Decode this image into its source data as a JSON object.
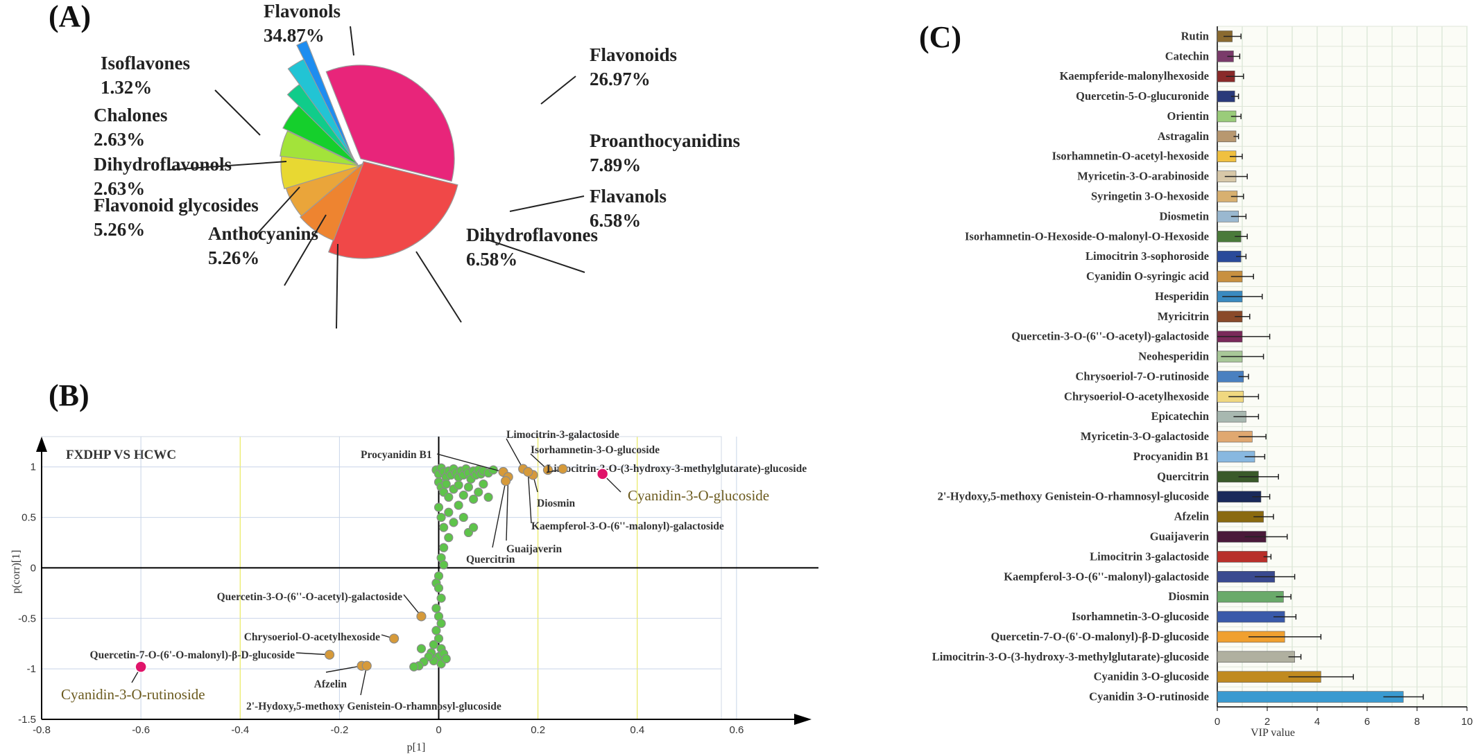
{
  "panels": {
    "a": "(A)",
    "b": "(B)",
    "c": "(C)"
  },
  "colors": {
    "flavonols": "#e8257a",
    "flavonoids": "#f04848",
    "proanthocyanidins": "#ee8430",
    "flavanols": "#eaa53a",
    "dihydroflavones": "#e8d832",
    "anthocyanins": "#a3e33a",
    "flavonoid_glycosides": "#15cf2c",
    "dihydroflavonols": "#10cc8a",
    "chalones": "#22c4d4",
    "isoflavones": "#1e8df0",
    "scatter_point": "#5ec44a",
    "scatter_highlight": "#e0146a",
    "scatter_outline": "#d69a3a"
  },
  "chart_data": [
    {
      "type": "pie",
      "slices": [
        {
          "name": "Flavonols",
          "label_pct": "34.87%",
          "value": 34.87,
          "color": "#e8257a"
        },
        {
          "name": "Flavonoids",
          "label_pct": "26.97%",
          "value": 26.97,
          "color": "#f04848"
        },
        {
          "name": "Proanthocyanidins",
          "label_pct": "7.89%",
          "value": 7.89,
          "color": "#ee8430"
        },
        {
          "name": "Flavanols",
          "label_pct": "6.58%",
          "value": 6.58,
          "color": "#eaa53a"
        },
        {
          "name": "Dihydroflavones",
          "label_pct": "6.58%",
          "value": 6.58,
          "color": "#e8d832"
        },
        {
          "name": "Anthocyanins",
          "label_pct": "5.26%",
          "value": 5.26,
          "color": "#a3e33a"
        },
        {
          "name": "Flavonoid glycosides",
          "label_pct": "5.26%",
          "value": 5.26,
          "color": "#15cf2c"
        },
        {
          "name": "Dihydroflavonols",
          "label_pct": "2.63%",
          "value": 2.63,
          "color": "#10cc8a"
        },
        {
          "name": "Chalones",
          "label_pct": "2.63%",
          "value": 2.63,
          "color": "#22c4d4"
        },
        {
          "name": "Isoflavones",
          "label_pct": "1.32%",
          "value": 1.32,
          "color": "#1e8df0"
        }
      ]
    },
    {
      "type": "scatter",
      "title": "FXDHP VS HCWC",
      "xlabel": "p[1]",
      "ylabel": "p(corr)[1]",
      "xlim": [
        -0.8,
        0.8
      ],
      "ylim": [
        -1.5,
        1.3
      ],
      "xticks": [
        "-0.8",
        "-0.6",
        "-0.4",
        "-0.2",
        "0",
        "0.2",
        "0.4",
        "0.6"
      ],
      "yticks": [
        "-1.5",
        "-1",
        "-0.5",
        "0",
        "0.5",
        "1"
      ],
      "cluster_points": [
        [
          -0.005,
          0.97
        ],
        [
          0.0,
          0.93
        ],
        [
          0.005,
          0.99
        ],
        [
          0.01,
          0.95
        ],
        [
          0.015,
          0.9
        ],
        [
          0.02,
          0.96
        ],
        [
          0.025,
          0.92
        ],
        [
          0.03,
          0.98
        ],
        [
          0.035,
          0.94
        ],
        [
          0.04,
          0.9
        ],
        [
          0.045,
          0.96
        ],
        [
          0.05,
          0.92
        ],
        [
          0.055,
          0.98
        ],
        [
          0.06,
          0.94
        ],
        [
          0.065,
          0.88
        ],
        [
          0.07,
          0.96
        ],
        [
          0.075,
          0.92
        ],
        [
          0.08,
          0.97
        ],
        [
          0.085,
          0.93
        ],
        [
          0.09,
          0.96
        ],
        [
          0.1,
          0.94
        ],
        [
          0.11,
          0.97
        ],
        [
          0.0,
          0.85
        ],
        [
          0.005,
          0.8
        ],
        [
          0.01,
          0.75
        ],
        [
          0.015,
          0.83
        ],
        [
          0.02,
          0.7
        ],
        [
          0.03,
          0.78
        ],
        [
          0.04,
          0.82
        ],
        [
          0.05,
          0.72
        ],
        [
          0.06,
          0.8
        ],
        [
          0.07,
          0.68
        ],
        [
          0.08,
          0.75
        ],
        [
          0.09,
          0.83
        ],
        [
          0.1,
          0.7
        ],
        [
          0.0,
          0.6
        ],
        [
          0.005,
          0.5
        ],
        [
          0.01,
          0.4
        ],
        [
          0.02,
          0.55
        ],
        [
          0.03,
          0.45
        ],
        [
          0.04,
          0.62
        ],
        [
          0.05,
          0.5
        ],
        [
          0.06,
          0.35
        ],
        [
          0.07,
          0.4
        ],
        [
          0.02,
          0.3
        ],
        [
          0.01,
          0.2
        ],
        [
          0.005,
          0.1
        ],
        [
          0.01,
          0.03
        ],
        [
          0.0,
          -0.08
        ],
        [
          -0.005,
          -0.15
        ],
        [
          0.0,
          -0.2
        ],
        [
          0.005,
          -0.3
        ],
        [
          -0.005,
          -0.4
        ],
        [
          0.0,
          -0.48
        ],
        [
          0.005,
          -0.55
        ],
        [
          -0.005,
          -0.62
        ],
        [
          0.0,
          -0.7
        ],
        [
          -0.01,
          -0.76
        ],
        [
          0.005,
          -0.8
        ],
        [
          -0.015,
          -0.84
        ],
        [
          0.0,
          -0.88
        ],
        [
          -0.01,
          -0.92
        ],
        [
          0.005,
          -0.95
        ],
        [
          -0.02,
          -0.88
        ],
        [
          -0.03,
          -0.93
        ],
        [
          -0.04,
          -0.97
        ],
        [
          -0.035,
          -0.8
        ],
        [
          -0.05,
          -0.98
        ],
        [
          0.01,
          -0.85
        ],
        [
          0.015,
          -0.9
        ]
      ],
      "labeled_points": [
        {
          "name": "Procyanidin B1",
          "x": 0.13,
          "y": 0.95
        },
        {
          "name": "Limocitrin-3-galactoside",
          "x": 0.17,
          "y": 0.98
        },
        {
          "name": "Isorhamnetin-3-O-glucoside",
          "x": 0.22,
          "y": 0.97
        },
        {
          "name": "Limocitrin-3-O-(3-hydroxy-3-methylglutarate)-glucoside",
          "x": 0.25,
          "y": 0.98
        },
        {
          "name": "Diosmin",
          "x": 0.19,
          "y": 0.92
        },
        {
          "name": "Kaempferol-3-O-(6''-malonyl)-galactoside",
          "x": 0.18,
          "y": 0.95
        },
        {
          "name": "Guaijaverin",
          "x": 0.14,
          "y": 0.9
        },
        {
          "name": "Quercitrin",
          "x": 0.135,
          "y": 0.86
        },
        {
          "name": "Cyanidin-3-O-glucoside",
          "x": 0.33,
          "y": 0.93,
          "highlight": true
        },
        {
          "name": "Quercetin-3-O-(6''-O-acetyl)-galactoside",
          "x": -0.035,
          "y": -0.48
        },
        {
          "name": "Chrysoeriol-O-acetylhexoside",
          "x": -0.09,
          "y": -0.7
        },
        {
          "name": "Quercetin-7-O-(6'-O-malonyl)-β-D-glucoside",
          "x": -0.22,
          "y": -0.86
        },
        {
          "name": "Afzelin",
          "x": -0.155,
          "y": -0.97
        },
        {
          "name": "2'-Hydoxy,5-methoxy Genistein-O-rhamnosyl-glucoside",
          "x": -0.145,
          "y": -0.97
        },
        {
          "name": "Cyanidin-3-O-rutinoside",
          "x": -0.6,
          "y": -0.98,
          "highlight": true
        }
      ]
    },
    {
      "type": "bar",
      "orientation": "horizontal",
      "xlabel": "VIP value",
      "xlim": [
        0,
        10
      ],
      "xticks": [
        "0",
        "2",
        "4",
        "6",
        "8",
        "10"
      ],
      "grid": true,
      "categories": [
        "Rutin",
        "Catechin",
        "Kaempferide-malonylhexoside",
        "Quercetin-5-O-glucuronide",
        "Orientin",
        "Astragalin",
        "Isorhamnetin-O-acetyl-hexoside",
        "Myricetin-3-O-arabinoside",
        "Syringetin 3-O-hexoside",
        "Diosmetin",
        "Isorhamnetin-O-Hexoside-O-malonyl-O-Hexoside",
        "Limocitrin 3-sophoroside",
        "Cyanidin O-syringic acid",
        "Hesperidin",
        "Myricitrin",
        "Quercetin-3-O-(6''-O-acetyl)-galactoside",
        "Neohesperidin",
        "Chrysoeriol-7-O-rutinoside",
        "Chrysoeriol-O-acetylhexoside",
        "Epicatechin",
        "Myricetin-3-O-galactoside",
        "Procyanidin B1",
        "Quercitrin",
        "2'-Hydoxy,5-methoxy Genistein-O-rhamnosyl-glucoside",
        "Afzelin",
        "Guaijaverin",
        "Limocitrin 3-galactoside",
        "Kaempferol-3-O-(6''-malonyl)-galactoside",
        "Diosmin",
        "Isorhamnetin-3-O-glucoside",
        "Quercetin-7-O-(6'-O-malonyl)-β-D-glucoside",
        "Limocitrin-3-O-(3-hydroxy-3-methylglutarate)-glucoside",
        "Cyanidin 3-O-glucoside",
        "Cyanidin 3-O-rutinoside"
      ],
      "values": [
        0.6,
        0.65,
        0.7,
        0.7,
        0.75,
        0.75,
        0.75,
        0.75,
        0.8,
        0.85,
        0.95,
        0.95,
        1.0,
        1.0,
        1.0,
        1.0,
        1.0,
        1.05,
        1.05,
        1.15,
        1.4,
        1.5,
        1.65,
        1.75,
        1.85,
        1.95,
        2.0,
        2.3,
        2.65,
        2.7,
        2.7,
        3.1,
        4.15,
        7.45
      ],
      "errors": [
        0.35,
        0.25,
        0.35,
        0.15,
        0.2,
        0.1,
        0.25,
        0.45,
        0.25,
        0.3,
        0.25,
        0.2,
        0.45,
        0.8,
        0.3,
        1.1,
        0.85,
        0.2,
        0.6,
        0.5,
        0.55,
        0.4,
        0.8,
        0.35,
        0.4,
        0.85,
        0.15,
        0.8,
        0.3,
        0.45,
        1.45,
        0.25,
        1.3,
        0.8
      ],
      "colors": [
        "#8a6a30",
        "#7a3a6a",
        "#8a2a2a",
        "#2a3a7a",
        "#9acc7a",
        "#b89870",
        "#f0c040",
        "#d8c8a8",
        "#d8b070",
        "#9ab8d0",
        "#4a7a3a",
        "#2a4a9a",
        "#c89040",
        "#3a8ac0",
        "#8a4a2a",
        "#7a2a5a",
        "#a8c898",
        "#4a80c0",
        "#f0d880",
        "#a8b8b0",
        "#e0a870",
        "#88b8e0",
        "#3a5a2a",
        "#1a2a5a",
        "#8a6a10",
        "#4a1a3a",
        "#b8302a",
        "#3a4a90",
        "#6aaa6a",
        "#3a5aaa",
        "#f0a030",
        "#b0b0a0",
        "#c08a20",
        "#3a9ad0"
      ]
    }
  ]
}
